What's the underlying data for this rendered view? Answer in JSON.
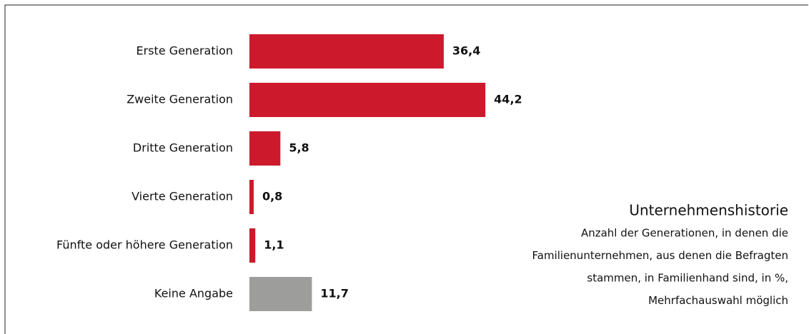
{
  "chart_data": {
    "type": "barh",
    "title": "Unternehmenshistorie",
    "subtitle": [
      "Anzahl der Generationen, in denen die",
      "Familienunternehmen, aus denen die Befragten",
      "stammen, in Familienhand sind, in %,",
      "Mehrfachauswahl möglich"
    ],
    "categories": [
      "Erste Generation",
      "Zweite Generation",
      "Dritte Generation",
      "Vierte Generation",
      "Fünfte oder höhere Generation",
      "Keine Angabe"
    ],
    "values": [
      36.4,
      44.2,
      5.8,
      0.8,
      1.1,
      11.7
    ],
    "value_labels": [
      "36,4",
      "44,2",
      "5,8",
      "0,8",
      "1,1",
      "11,7"
    ],
    "colors": [
      "#cc1a2c",
      "#cc1a2c",
      "#cc1a2c",
      "#cc1a2c",
      "#cc1a2c",
      "#9d9d9c"
    ]
  }
}
